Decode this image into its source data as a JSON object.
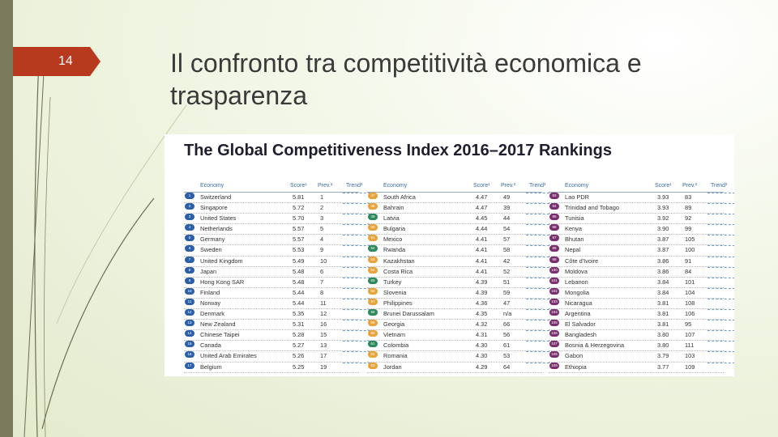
{
  "slide": {
    "number": "14",
    "title": "Il confronto tra competitività economica e trasparenza"
  },
  "colors": {
    "accent_tab": "#b83a1e",
    "left_bar": "#7a7a5c",
    "badge_top": "#2b5fa8",
    "badge_mid": "#e8a33a",
    "badge_low": "#7a2f6e",
    "badge_low2": "#2a8a5a"
  },
  "gci": {
    "title": "The Global Competitiveness Index 2016–2017 Rankings",
    "headers": {
      "economy": "Economy",
      "score": "Score¹",
      "prev": "Prev.²",
      "trend": "Trend³"
    },
    "columns": [
      [
        {
          "rank": "1",
          "economy": "Switzerland",
          "score": "5.81",
          "prev": "1"
        },
        {
          "rank": "2",
          "economy": "Singapore",
          "score": "5.72",
          "prev": "2"
        },
        {
          "rank": "3",
          "economy": "United States",
          "score": "5.70",
          "prev": "3"
        },
        {
          "rank": "4",
          "economy": "Netherlands",
          "score": "5.57",
          "prev": "5"
        },
        {
          "rank": "5",
          "economy": "Germany",
          "score": "5.57",
          "prev": "4"
        },
        {
          "rank": "6",
          "economy": "Sweden",
          "score": "5.53",
          "prev": "9"
        },
        {
          "rank": "7",
          "economy": "United Kingdom",
          "score": "5.49",
          "prev": "10"
        },
        {
          "rank": "8",
          "economy": "Japan",
          "score": "5.48",
          "prev": "6"
        },
        {
          "rank": "9",
          "economy": "Hong Kong SAR",
          "score": "5.48",
          "prev": "7"
        },
        {
          "rank": "10",
          "economy": "Finland",
          "score": "5.44",
          "prev": "8"
        },
        {
          "rank": "11",
          "economy": "Norway",
          "score": "5.44",
          "prev": "11"
        },
        {
          "rank": "12",
          "economy": "Denmark",
          "score": "5.35",
          "prev": "12"
        },
        {
          "rank": "13",
          "economy": "New Zealand",
          "score": "5.31",
          "prev": "16"
        },
        {
          "rank": "14",
          "economy": "Chinese Taipei",
          "score": "5.28",
          "prev": "15"
        },
        {
          "rank": "15",
          "economy": "Canada",
          "score": "5.27",
          "prev": "13"
        },
        {
          "rank": "16",
          "economy": "United Arab Emirates",
          "score": "5.26",
          "prev": "17"
        },
        {
          "rank": "17",
          "economy": "Belgium",
          "score": "5.25",
          "prev": "19"
        }
      ],
      [
        {
          "rank": "47",
          "economy": "South Africa",
          "score": "4.47",
          "prev": "49"
        },
        {
          "rank": "48",
          "economy": "Bahrain",
          "score": "4.47",
          "prev": "39"
        },
        {
          "rank": "49",
          "economy": "Latvia",
          "score": "4.45",
          "prev": "44"
        },
        {
          "rank": "50",
          "economy": "Bulgaria",
          "score": "4.44",
          "prev": "54"
        },
        {
          "rank": "51",
          "economy": "Mexico",
          "score": "4.41",
          "prev": "57"
        },
        {
          "rank": "52",
          "economy": "Rwanda",
          "score": "4.41",
          "prev": "58"
        },
        {
          "rank": "53",
          "economy": "Kazakhstan",
          "score": "4.41",
          "prev": "42"
        },
        {
          "rank": "54",
          "economy": "Costa Rica",
          "score": "4.41",
          "prev": "52"
        },
        {
          "rank": "55",
          "economy": "Turkey",
          "score": "4.39",
          "prev": "51"
        },
        {
          "rank": "56",
          "economy": "Slovenia",
          "score": "4.39",
          "prev": "59"
        },
        {
          "rank": "57",
          "economy": "Philippines",
          "score": "4.36",
          "prev": "47"
        },
        {
          "rank": "58",
          "economy": "Brunei Darussalam",
          "score": "4.35",
          "prev": "n/a"
        },
        {
          "rank": "59",
          "economy": "Georgia",
          "score": "4.32",
          "prev": "66"
        },
        {
          "rank": "60",
          "economy": "Vietnam",
          "score": "4.31",
          "prev": "56"
        },
        {
          "rank": "61",
          "economy": "Colombia",
          "score": "4.30",
          "prev": "61"
        },
        {
          "rank": "62",
          "economy": "Romania",
          "score": "4.30",
          "prev": "53"
        },
        {
          "rank": "63",
          "economy": "Jordan",
          "score": "4.29",
          "prev": "64"
        }
      ],
      [
        {
          "rank": "93",
          "economy": "Lao PDR",
          "score": "3.93",
          "prev": "83"
        },
        {
          "rank": "94",
          "economy": "Trinidad and Tobago",
          "score": "3.93",
          "prev": "89"
        },
        {
          "rank": "95",
          "economy": "Tunisia",
          "score": "3.92",
          "prev": "92"
        },
        {
          "rank": "96",
          "economy": "Kenya",
          "score": "3.90",
          "prev": "99"
        },
        {
          "rank": "97",
          "economy": "Bhutan",
          "score": "3.87",
          "prev": "105"
        },
        {
          "rank": "98",
          "economy": "Nepal",
          "score": "3.87",
          "prev": "100"
        },
        {
          "rank": "99",
          "economy": "Côte d'Ivoire",
          "score": "3.86",
          "prev": "91"
        },
        {
          "rank": "100",
          "economy": "Moldova",
          "score": "3.86",
          "prev": "84"
        },
        {
          "rank": "101",
          "economy": "Lebanon",
          "score": "3.84",
          "prev": "101"
        },
        {
          "rank": "102",
          "economy": "Mongolia",
          "score": "3.84",
          "prev": "104"
        },
        {
          "rank": "103",
          "economy": "Nicaragua",
          "score": "3.81",
          "prev": "108"
        },
        {
          "rank": "104",
          "economy": "Argentina",
          "score": "3.81",
          "prev": "106"
        },
        {
          "rank": "105",
          "economy": "El Salvador",
          "score": "3.81",
          "prev": "95"
        },
        {
          "rank": "106",
          "economy": "Bangladesh",
          "score": "3.80",
          "prev": "107"
        },
        {
          "rank": "107",
          "economy": "Bosnia & Herzegovina",
          "score": "3.80",
          "prev": "111"
        },
        {
          "rank": "108",
          "economy": "Gabon",
          "score": "3.79",
          "prev": "103"
        },
        {
          "rank": "109",
          "economy": "Ethiopia",
          "score": "3.77",
          "prev": "109"
        }
      ]
    ]
  }
}
